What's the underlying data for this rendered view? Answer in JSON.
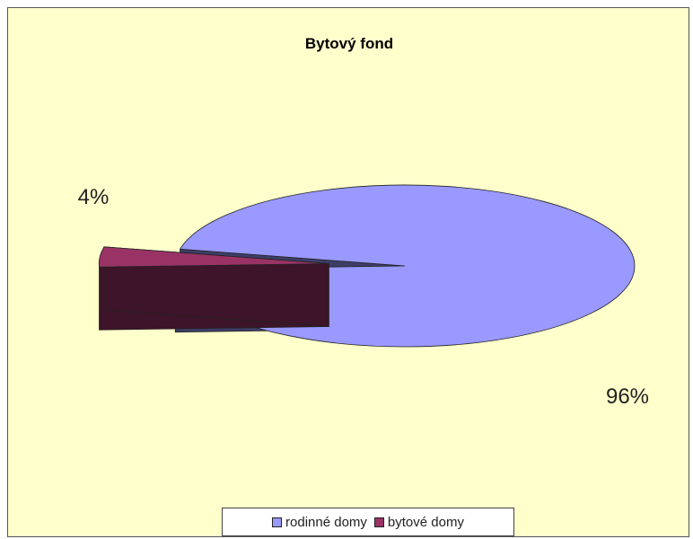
{
  "chart_data": {
    "type": "pie",
    "title": "Bytový fond",
    "categories": [
      "rodinné domy",
      "bytové domy"
    ],
    "values": [
      96,
      4
    ],
    "labels": [
      "96%",
      "4%"
    ],
    "colors": [
      "#9999ff",
      "#993366"
    ],
    "legend_position": "bottom",
    "three_d": true,
    "exploded": [
      "bytové domy"
    ]
  }
}
